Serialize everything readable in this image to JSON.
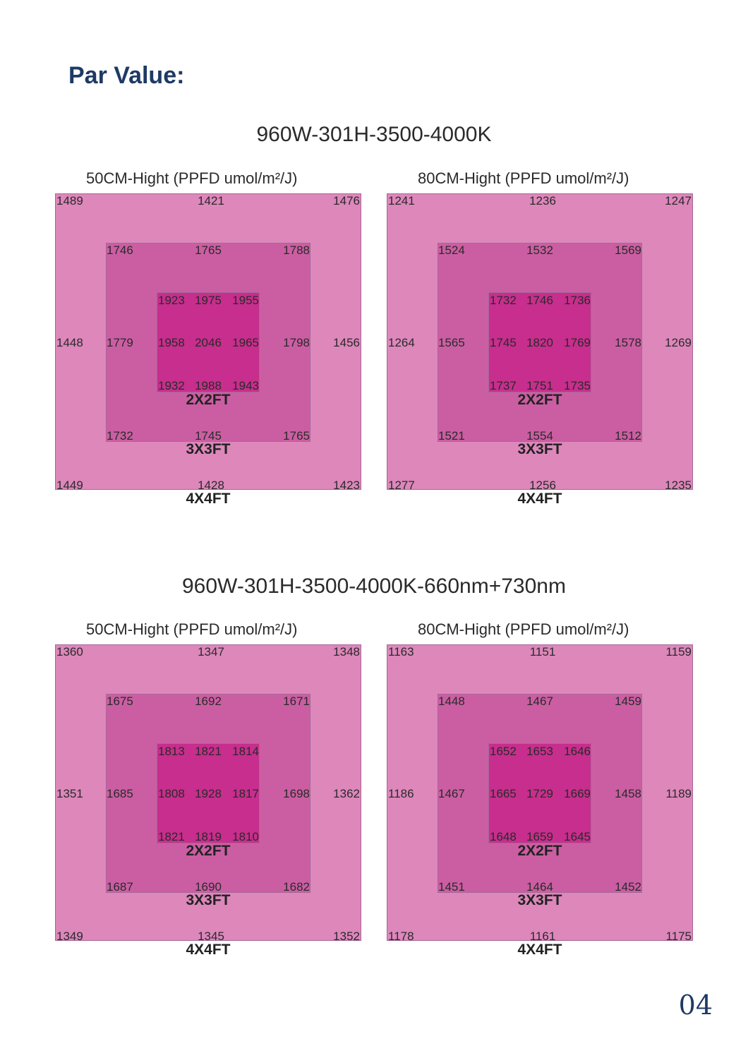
{
  "heading": "Par Value:",
  "page_number": "04",
  "sections": [
    {
      "title": "960W-301H-3500-4000K",
      "maps": [
        {
          "caption": "50CM-Hight   (PPFD umol/m²/J)",
          "outer": [
            "1489",
            "1421",
            "1476",
            "1448",
            "1456",
            "1449",
            "1428",
            "1423"
          ],
          "middle": [
            "1746",
            "1765",
            "1788",
            "1779",
            "1798",
            "1732",
            "1745",
            "1765"
          ],
          "inner": [
            "1923",
            "1975",
            "1955",
            "1958",
            "2046",
            "1965",
            "1932",
            "1988",
            "1943"
          ],
          "labels": [
            "2X2FT",
            "3X3FT",
            "4X4FT"
          ]
        },
        {
          "caption": "80CM-Hight   (PPFD umol/m²/J)",
          "outer": [
            "1241",
            "1236",
            "1247",
            "1264",
            "1269",
            "1277",
            "1256",
            "1235"
          ],
          "middle": [
            "1524",
            "1532",
            "1569",
            "1565",
            "1578",
            "1521",
            "1554",
            "1512"
          ],
          "inner": [
            "1732",
            "1746",
            "1736",
            "1745",
            "1820",
            "1769",
            "1737",
            "1751",
            "1735"
          ],
          "labels": [
            "2X2FT",
            "3X3FT",
            "4X4FT"
          ]
        }
      ]
    },
    {
      "title": "960W-301H-3500-4000K-660nm+730nm",
      "maps": [
        {
          "caption": "50CM-Hight   (PPFD umol/m²/J)",
          "outer": [
            "1360",
            "1347",
            "1348",
            "1351",
            "1362",
            "1349",
            "1345",
            "1352"
          ],
          "middle": [
            "1675",
            "1692",
            "1671",
            "1685",
            "1698",
            "1687",
            "1690",
            "1682"
          ],
          "inner": [
            "1813",
            "1821",
            "1814",
            "1808",
            "1928",
            "1817",
            "1821",
            "1819",
            "1810"
          ],
          "labels": [
            "2X2FT",
            "3X3FT",
            "4X4FT"
          ]
        },
        {
          "caption": "80CM-Hight   (PPFD umol/m²/J)",
          "outer": [
            "1163",
            "1151",
            "1159",
            "1186",
            "1189",
            "1178",
            "1161",
            "1175"
          ],
          "middle": [
            "1448",
            "1467",
            "1459",
            "1467",
            "1458",
            "1451",
            "1464",
            "1452"
          ],
          "inner": [
            "1652",
            "1653",
            "1646",
            "1665",
            "1729",
            "1669",
            "1648",
            "1659",
            "1645"
          ],
          "labels": [
            "2X2FT",
            "3X3FT",
            "4X4FT"
          ]
        }
      ]
    }
  ]
}
